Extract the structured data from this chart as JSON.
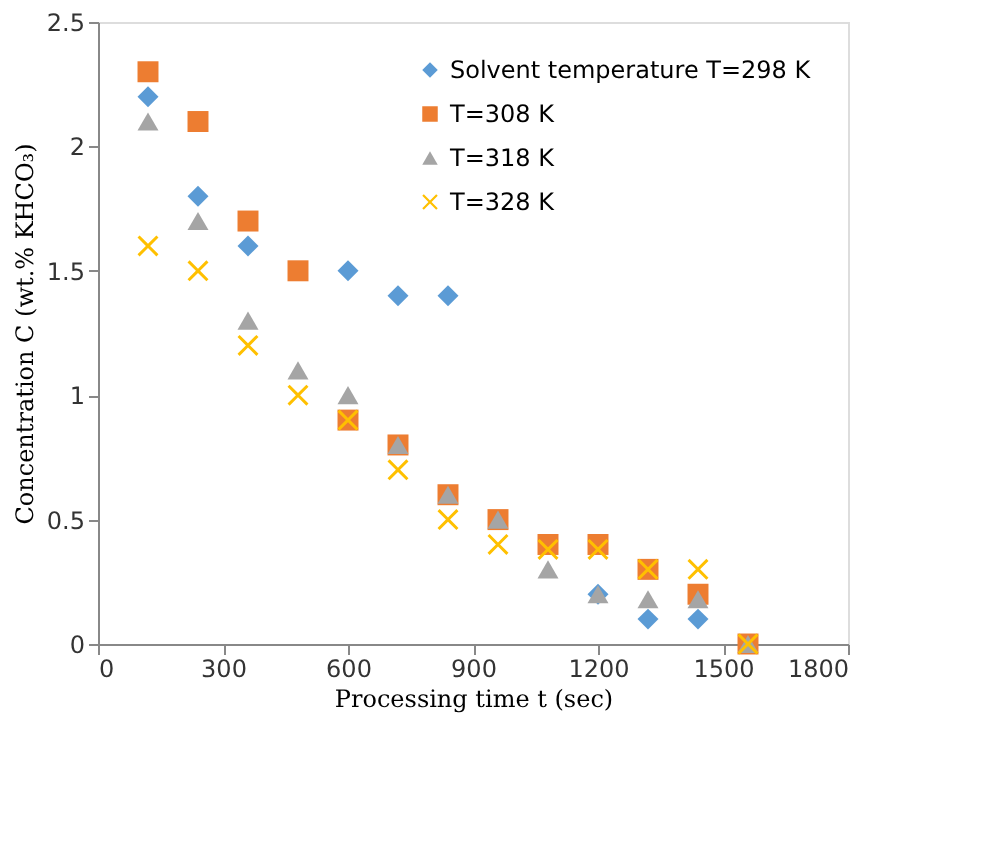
{
  "chart_data": {
    "type": "scatter",
    "xlabel": "Processing time t (sec)",
    "ylabel": "Concentration C (wt.% KHCO₃)",
    "x": [
      120,
      240,
      360,
      480,
      600,
      720,
      840,
      960,
      1080,
      1200,
      1320,
      1440,
      1560
    ],
    "series": [
      {
        "name": "Solvent temperature T=298 K",
        "color": "#5b9bd5",
        "marker": "diamond",
        "values": [
          2.2,
          1.8,
          1.6,
          null,
          1.5,
          1.4,
          1.4,
          null,
          null,
          0.2,
          0.1,
          0.1,
          null
        ]
      },
      {
        "name": "T=308 K",
        "color": "#ed7d31",
        "marker": "square",
        "values": [
          2.3,
          2.1,
          1.7,
          1.5,
          0.9,
          0.8,
          0.6,
          0.5,
          0.4,
          0.4,
          0.3,
          0.2,
          0
        ]
      },
      {
        "name": "T=318 K",
        "color": "#a5a5a5",
        "marker": "triangle",
        "values": [
          2.1,
          1.7,
          1.3,
          1.1,
          1.0,
          0.8,
          0.6,
          0.5,
          0.3,
          0.2,
          0.18,
          0.18,
          0
        ]
      },
      {
        "name": "T=328 K",
        "color": "#ffc000",
        "marker": "cross",
        "values": [
          1.6,
          1.5,
          1.2,
          1.0,
          0.9,
          0.7,
          0.5,
          0.4,
          0.38,
          0.38,
          0.3,
          0.3,
          0
        ]
      }
    ],
    "xlim": [
      0,
      1800
    ],
    "xticks": [
      0,
      300,
      600,
      900,
      1200,
      1500,
      1800
    ],
    "ylim": [
      0,
      2.5
    ],
    "yticks": [
      0,
      0.5,
      1,
      1.5,
      2,
      2.5
    ],
    "grid": false,
    "legend": "top right"
  }
}
